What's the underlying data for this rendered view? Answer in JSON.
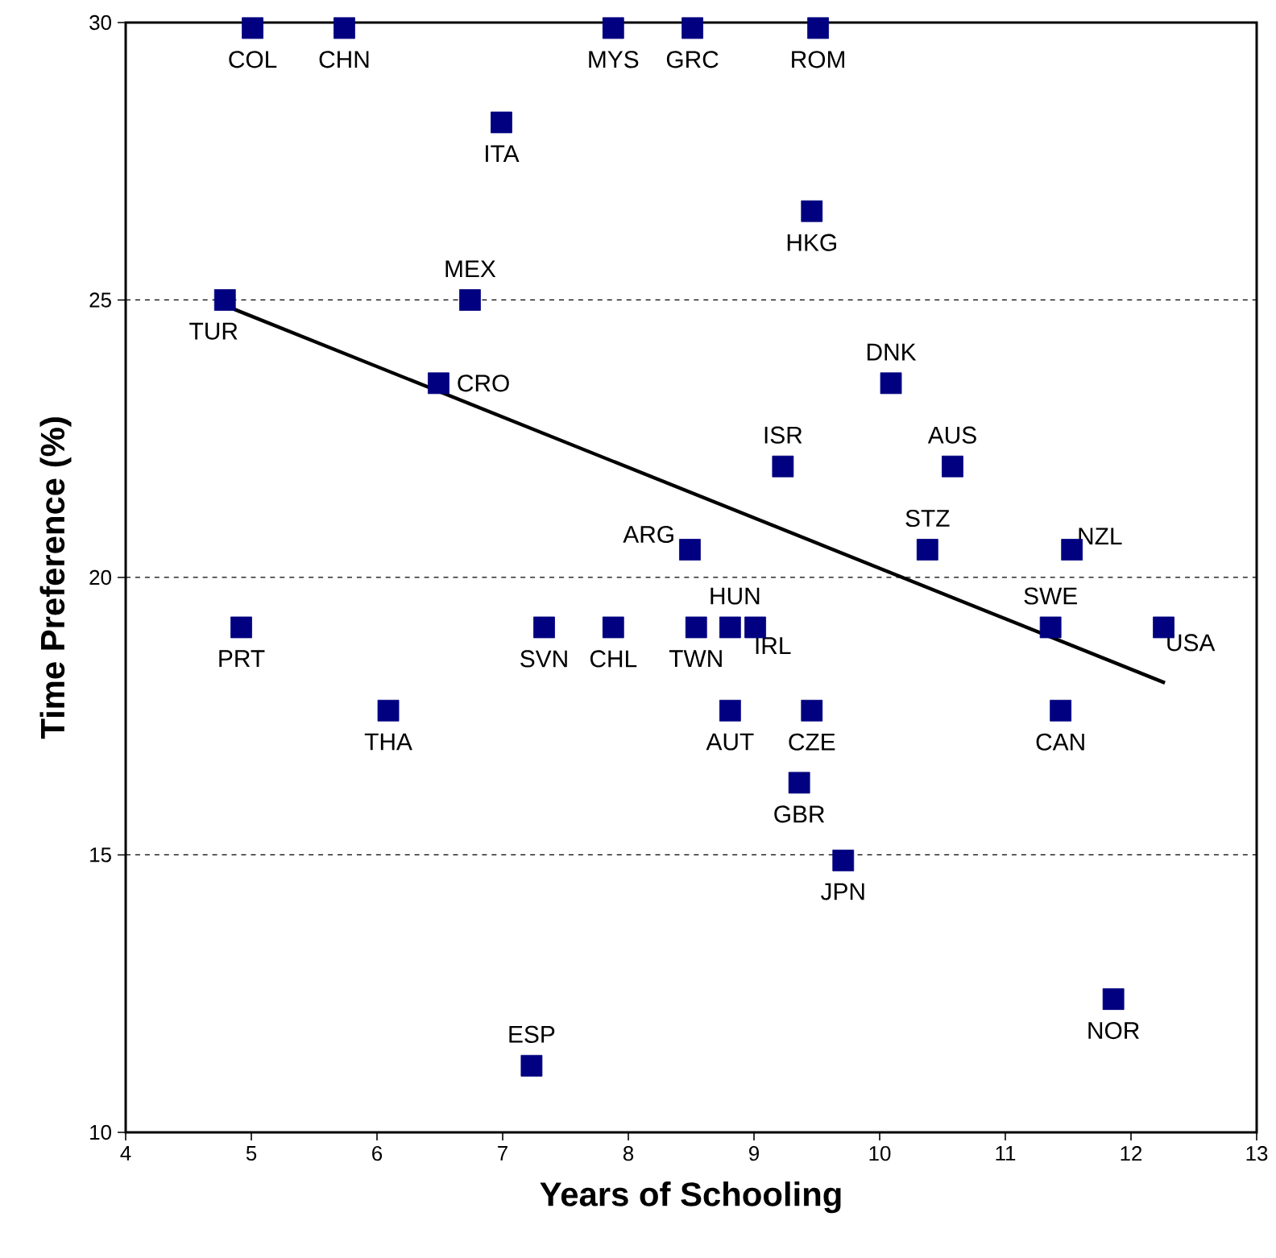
{
  "chart_data": {
    "type": "scatter",
    "xlabel": "Years of Schooling",
    "ylabel": "Time Preference (%)",
    "xlim": [
      4,
      13
    ],
    "ylim": [
      10,
      30
    ],
    "xticks": [
      4,
      5,
      6,
      7,
      8,
      9,
      10,
      11,
      12,
      13
    ],
    "yticks": [
      10,
      15,
      20,
      25,
      30
    ],
    "grid": "y",
    "marker": "square",
    "series": [
      {
        "color": "#000080",
        "x": [
          5.01,
          5.74,
          7.88,
          8.51,
          9.51,
          6.99,
          9.46,
          6.74,
          4.79,
          6.49,
          10.09,
          9.23,
          10.58,
          8.49,
          10.38,
          11.53,
          4.92,
          7.33,
          7.88,
          8.54,
          8.81,
          9.01,
          11.36,
          12.26,
          6.09,
          8.81,
          9.46,
          11.44,
          9.36,
          9.71,
          7.23,
          11.86
        ],
        "values": [
          29.9,
          29.9,
          29.9,
          29.9,
          29.9,
          28.2,
          26.6,
          25.0,
          25.0,
          23.5,
          23.5,
          22.0,
          22.0,
          20.5,
          20.5,
          20.5,
          19.1,
          19.1,
          19.1,
          19.1,
          19.1,
          19.1,
          19.1,
          19.1,
          17.6,
          17.6,
          17.6,
          17.6,
          16.3,
          14.9,
          11.2,
          12.4
        ]
      },
      {
        "type": "line",
        "color": "#000000",
        "marker": "none",
        "x": [
          4.79,
          12.27
        ],
        "values": [
          24.9,
          18.1
        ]
      }
    ],
    "annotations": [
      {
        "text": "COL",
        "x": 5.01,
        "y": 29.9
      },
      {
        "text": "CHN",
        "x": 5.74,
        "y": 29.9
      },
      {
        "text": "MYS",
        "x": 7.88,
        "y": 29.9
      },
      {
        "text": "GRC",
        "x": 8.51,
        "y": 29.9
      },
      {
        "text": "ROM",
        "x": 9.51,
        "y": 29.9
      },
      {
        "text": "ITA",
        "x": 6.99,
        "y": 28.2
      },
      {
        "text": "HKG",
        "x": 9.46,
        "y": 26.6
      },
      {
        "text": "MEX",
        "x": 6.74,
        "y": 25.0
      },
      {
        "text": "TUR",
        "x": 4.79,
        "y": 25.0
      },
      {
        "text": "CRO",
        "x": 6.49,
        "y": 23.5
      },
      {
        "text": "DNK",
        "x": 10.09,
        "y": 23.5
      },
      {
        "text": "ISR",
        "x": 9.23,
        "y": 22.0
      },
      {
        "text": "AUS",
        "x": 10.58,
        "y": 22.0
      },
      {
        "text": "ARG",
        "x": 8.49,
        "y": 20.5
      },
      {
        "text": "STZ",
        "x": 10.38,
        "y": 20.5
      },
      {
        "text": "NZL",
        "x": 11.53,
        "y": 20.5
      },
      {
        "text": "PRT",
        "x": 4.92,
        "y": 19.1
      },
      {
        "text": "SVN",
        "x": 7.33,
        "y": 19.1
      },
      {
        "text": "CHL",
        "x": 7.88,
        "y": 19.1
      },
      {
        "text": "TWN",
        "x": 8.54,
        "y": 19.1
      },
      {
        "text": "HUN",
        "x": 8.81,
        "y": 19.1
      },
      {
        "text": "IRL",
        "x": 9.01,
        "y": 19.1
      },
      {
        "text": "SWE",
        "x": 11.36,
        "y": 19.1
      },
      {
        "text": "USA",
        "x": 12.26,
        "y": 19.1
      },
      {
        "text": "THA",
        "x": 6.09,
        "y": 17.6
      },
      {
        "text": "AUT",
        "x": 8.81,
        "y": 17.6
      },
      {
        "text": "CZE",
        "x": 9.46,
        "y": 17.6
      },
      {
        "text": "CAN",
        "x": 11.44,
        "y": 17.6
      },
      {
        "text": "GBR",
        "x": 9.36,
        "y": 16.3
      },
      {
        "text": "JPN",
        "x": 9.71,
        "y": 14.9
      },
      {
        "text": "ESP",
        "x": 7.23,
        "y": 11.2
      },
      {
        "text": "NOR",
        "x": 11.86,
        "y": 12.4
      }
    ]
  }
}
